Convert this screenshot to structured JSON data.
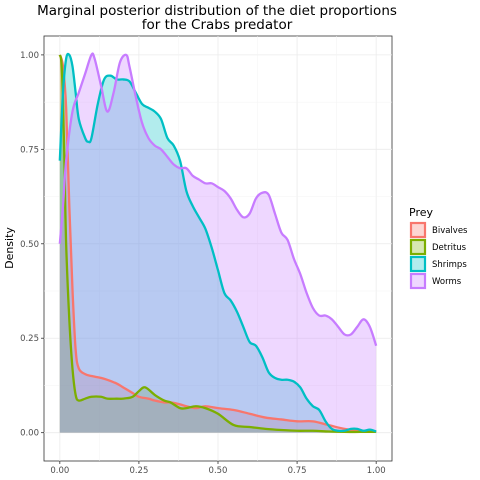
{
  "chart_data": {
    "type": "area",
    "title": "Marginal posterior distribution of the diet proportions",
    "subtitle": "for the Crabs predator",
    "xlabel": "",
    "ylabel": "Density",
    "xlim": [
      -0.05,
      1.05
    ],
    "ylim": [
      -0.075,
      1.05
    ],
    "x_ticks": [
      "0.00",
      "0.25",
      "0.50",
      "0.75",
      "1.00"
    ],
    "y_ticks": [
      "0.00",
      "0.25",
      "0.50",
      "0.75",
      "1.00"
    ],
    "grid": true,
    "legend": {
      "title": "Prey",
      "position": "right"
    },
    "series": [
      {
        "name": "Bivalves",
        "color": "#F8766D",
        "points": [
          [
            0,
            1.0
          ],
          [
            0.01,
            0.97
          ],
          [
            0.02,
            0.86
          ],
          [
            0.03,
            0.6
          ],
          [
            0.04,
            0.38
          ],
          [
            0.05,
            0.22
          ],
          [
            0.06,
            0.17
          ],
          [
            0.08,
            0.155
          ],
          [
            0.1,
            0.15
          ],
          [
            0.13,
            0.145
          ],
          [
            0.15,
            0.14
          ],
          [
            0.18,
            0.13
          ],
          [
            0.2,
            0.12
          ],
          [
            0.23,
            0.105
          ],
          [
            0.25,
            0.095
          ],
          [
            0.28,
            0.09
          ],
          [
            0.3,
            0.085
          ],
          [
            0.33,
            0.08
          ],
          [
            0.35,
            0.08
          ],
          [
            0.38,
            0.075
          ],
          [
            0.4,
            0.07
          ],
          [
            0.43,
            0.065
          ],
          [
            0.46,
            0.07
          ],
          [
            0.5,
            0.065
          ],
          [
            0.55,
            0.06
          ],
          [
            0.6,
            0.05
          ],
          [
            0.65,
            0.04
          ],
          [
            0.7,
            0.035
          ],
          [
            0.75,
            0.03
          ],
          [
            0.8,
            0.03
          ],
          [
            0.85,
            0.02
          ],
          [
            0.9,
            0.01
          ],
          [
            0.95,
            0.005
          ],
          [
            1.0,
            0.003
          ]
        ]
      },
      {
        "name": "Detritus",
        "color": "#7CAE00",
        "points": [
          [
            0,
            1.0
          ],
          [
            0.005,
            0.98
          ],
          [
            0.01,
            0.88
          ],
          [
            0.015,
            0.7
          ],
          [
            0.02,
            0.5
          ],
          [
            0.03,
            0.3
          ],
          [
            0.04,
            0.17
          ],
          [
            0.05,
            0.1
          ],
          [
            0.06,
            0.085
          ],
          [
            0.08,
            0.09
          ],
          [
            0.1,
            0.095
          ],
          [
            0.13,
            0.095
          ],
          [
            0.15,
            0.09
          ],
          [
            0.18,
            0.09
          ],
          [
            0.2,
            0.09
          ],
          [
            0.23,
            0.095
          ],
          [
            0.25,
            0.11
          ],
          [
            0.27,
            0.12
          ],
          [
            0.3,
            0.1
          ],
          [
            0.33,
            0.085
          ],
          [
            0.35,
            0.08
          ],
          [
            0.38,
            0.065
          ],
          [
            0.4,
            0.065
          ],
          [
            0.43,
            0.07
          ],
          [
            0.46,
            0.065
          ],
          [
            0.5,
            0.05
          ],
          [
            0.55,
            0.02
          ],
          [
            0.6,
            0.015
          ],
          [
            0.65,
            0.01
          ],
          [
            0.7,
            0.007
          ],
          [
            0.75,
            0.005
          ],
          [
            0.8,
            0.005
          ],
          [
            0.85,
            0.003
          ],
          [
            0.9,
            0.002
          ],
          [
            0.95,
            0.002
          ],
          [
            1.0,
            0.002
          ]
        ]
      },
      {
        "name": "Shrimps",
        "color": "#00BFC4",
        "points": [
          [
            0,
            0.72
          ],
          [
            0.01,
            0.9
          ],
          [
            0.02,
            0.99
          ],
          [
            0.03,
            1.0
          ],
          [
            0.04,
            0.97
          ],
          [
            0.05,
            0.9
          ],
          [
            0.06,
            0.83
          ],
          [
            0.08,
            0.78
          ],
          [
            0.09,
            0.77
          ],
          [
            0.1,
            0.78
          ],
          [
            0.12,
            0.87
          ],
          [
            0.14,
            0.935
          ],
          [
            0.16,
            0.945
          ],
          [
            0.18,
            0.935
          ],
          [
            0.2,
            0.935
          ],
          [
            0.22,
            0.93
          ],
          [
            0.24,
            0.9
          ],
          [
            0.26,
            0.87
          ],
          [
            0.28,
            0.86
          ],
          [
            0.3,
            0.85
          ],
          [
            0.32,
            0.83
          ],
          [
            0.34,
            0.78
          ],
          [
            0.36,
            0.76
          ],
          [
            0.38,
            0.72
          ],
          [
            0.4,
            0.64
          ],
          [
            0.42,
            0.6
          ],
          [
            0.44,
            0.57
          ],
          [
            0.46,
            0.54
          ],
          [
            0.48,
            0.49
          ],
          [
            0.5,
            0.43
          ],
          [
            0.52,
            0.37
          ],
          [
            0.54,
            0.35
          ],
          [
            0.56,
            0.32
          ],
          [
            0.58,
            0.28
          ],
          [
            0.6,
            0.24
          ],
          [
            0.62,
            0.23
          ],
          [
            0.64,
            0.2
          ],
          [
            0.66,
            0.16
          ],
          [
            0.68,
            0.145
          ],
          [
            0.7,
            0.14
          ],
          [
            0.72,
            0.14
          ],
          [
            0.74,
            0.135
          ],
          [
            0.76,
            0.12
          ],
          [
            0.78,
            0.09
          ],
          [
            0.8,
            0.07
          ],
          [
            0.82,
            0.06
          ],
          [
            0.84,
            0.03
          ],
          [
            0.86,
            0.01
          ],
          [
            0.88,
            0.005
          ],
          [
            0.9,
            0.005
          ],
          [
            0.92,
            0.01
          ],
          [
            0.94,
            0.01
          ],
          [
            0.96,
            0.005
          ],
          [
            0.98,
            0.008
          ],
          [
            1.0,
            0.003
          ]
        ]
      },
      {
        "name": "Worms",
        "color": "#C77CFF",
        "points": [
          [
            0,
            0.5
          ],
          [
            0.01,
            0.6
          ],
          [
            0.02,
            0.72
          ],
          [
            0.04,
            0.85
          ],
          [
            0.06,
            0.9
          ],
          [
            0.08,
            0.95
          ],
          [
            0.1,
            1.0
          ],
          [
            0.11,
            0.99
          ],
          [
            0.13,
            0.92
          ],
          [
            0.15,
            0.85
          ],
          [
            0.17,
            0.9
          ],
          [
            0.19,
            0.98
          ],
          [
            0.21,
            1.0
          ],
          [
            0.22,
            0.97
          ],
          [
            0.24,
            0.89
          ],
          [
            0.26,
            0.82
          ],
          [
            0.28,
            0.78
          ],
          [
            0.3,
            0.76
          ],
          [
            0.32,
            0.75
          ],
          [
            0.34,
            0.73
          ],
          [
            0.36,
            0.71
          ],
          [
            0.38,
            0.7
          ],
          [
            0.4,
            0.7
          ],
          [
            0.42,
            0.68
          ],
          [
            0.44,
            0.67
          ],
          [
            0.46,
            0.66
          ],
          [
            0.48,
            0.66
          ],
          [
            0.5,
            0.65
          ],
          [
            0.52,
            0.64
          ],
          [
            0.54,
            0.62
          ],
          [
            0.56,
            0.59
          ],
          [
            0.58,
            0.57
          ],
          [
            0.6,
            0.58
          ],
          [
            0.62,
            0.62
          ],
          [
            0.64,
            0.635
          ],
          [
            0.66,
            0.63
          ],
          [
            0.68,
            0.58
          ],
          [
            0.7,
            0.53
          ],
          [
            0.72,
            0.51
          ],
          [
            0.74,
            0.46
          ],
          [
            0.76,
            0.42
          ],
          [
            0.78,
            0.37
          ],
          [
            0.8,
            0.33
          ],
          [
            0.82,
            0.31
          ],
          [
            0.84,
            0.31
          ],
          [
            0.86,
            0.3
          ],
          [
            0.88,
            0.28
          ],
          [
            0.9,
            0.26
          ],
          [
            0.92,
            0.26
          ],
          [
            0.94,
            0.28
          ],
          [
            0.96,
            0.3
          ],
          [
            0.98,
            0.28
          ],
          [
            1.0,
            0.23
          ]
        ]
      }
    ]
  }
}
